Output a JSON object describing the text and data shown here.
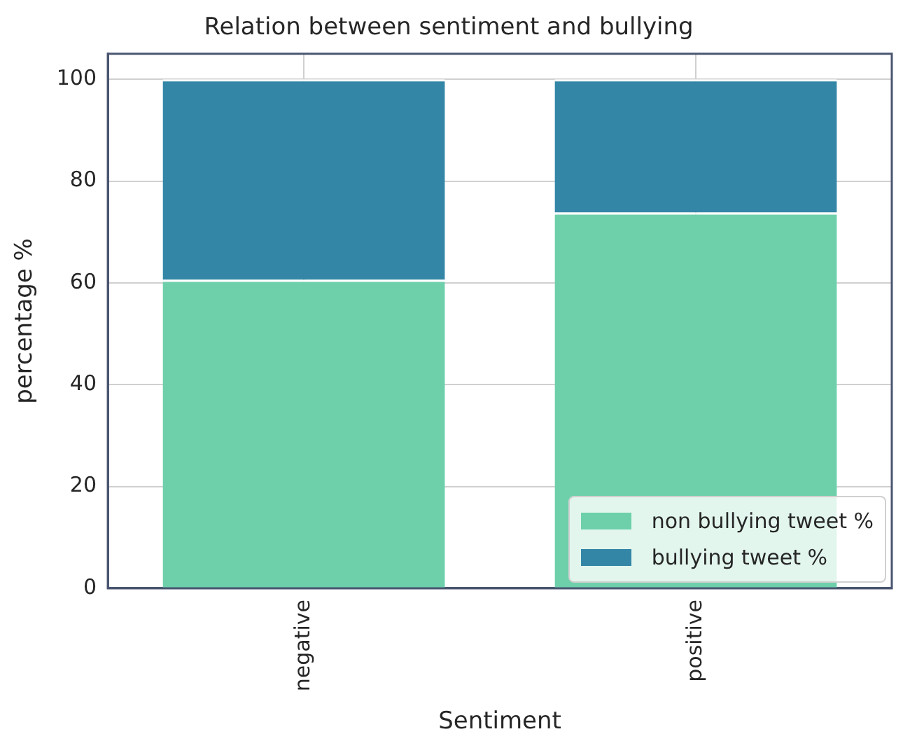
{
  "chart_data": {
    "type": "bar",
    "title": "Relation between sentiment and bullying",
    "xlabel": "Sentiment",
    "ylabel": "percentage %",
    "categories": [
      "negative",
      "positive"
    ],
    "series": [
      {
        "name": "non bullying tweet %",
        "color": "#6dd0ab",
        "values": [
          60.6,
          73.8
        ]
      },
      {
        "name": "bullying tweet %",
        "color": "#3386a6",
        "values": [
          39.4,
          26.2
        ]
      }
    ],
    "stacked": true,
    "ylim": [
      0,
      105
    ],
    "yticks": [
      0,
      20,
      40,
      60,
      80,
      100
    ],
    "grid": true,
    "legend": "bottom right"
  }
}
